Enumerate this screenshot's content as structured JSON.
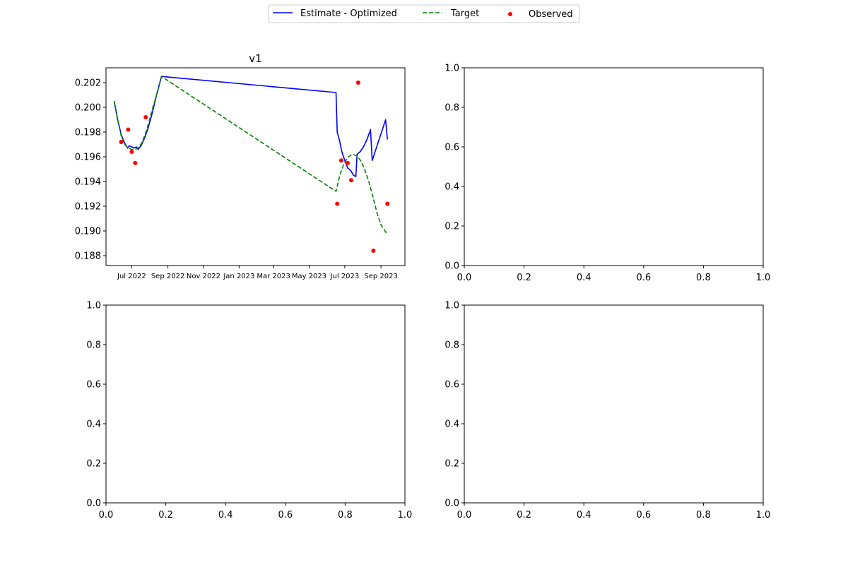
{
  "legend": {
    "items": [
      {
        "label": "Estimate - Optimized",
        "style": "solid-line",
        "color": "#0000ff"
      },
      {
        "label": "Target",
        "style": "dashed-line",
        "color": "#008000"
      },
      {
        "label": "Observed",
        "style": "dot",
        "color": "#ff0000"
      }
    ]
  },
  "chart_data": [
    {
      "type": "line",
      "title": "v1",
      "xlabel": "",
      "ylabel": "",
      "x_type": "date",
      "xlim": [
        "2022-05-18",
        "2023-10-12"
      ],
      "ylim": [
        0.1872,
        0.2032
      ],
      "x_ticks": [
        "2022-07-01",
        "2022-09-01",
        "2022-11-01",
        "2023-01-01",
        "2023-03-01",
        "2023-05-01",
        "2023-07-01",
        "2023-09-01"
      ],
      "x_tick_labels": [
        "Jul 2022",
        "Sep 2022",
        "Nov 2022",
        "Jan 2023",
        "Mar 2023",
        "May 2023",
        "Jul 2023",
        "Sep 2023"
      ],
      "y_ticks": [
        0.188,
        0.19,
        0.192,
        0.194,
        0.196,
        0.198,
        0.2,
        0.202
      ],
      "y_tick_labels": [
        "0.188",
        "0.190",
        "0.192",
        "0.194",
        "0.196",
        "0.198",
        "0.200",
        "0.202"
      ],
      "grid": false,
      "series": [
        {
          "name": "Estimate - Optimized",
          "kind": "line",
          "color": "#0000ff",
          "dash": "solid",
          "points": [
            [
              "2022-06-01",
              0.2005
            ],
            [
              "2022-06-07",
              0.199
            ],
            [
              "2022-06-13",
              0.1978
            ],
            [
              "2022-06-19",
              0.1971
            ],
            [
              "2022-06-24",
              0.1967
            ],
            [
              "2022-06-27",
              0.1969
            ],
            [
              "2022-07-01",
              0.1968
            ],
            [
              "2022-07-05",
              0.1967
            ],
            [
              "2022-07-09",
              0.1968
            ],
            [
              "2022-07-12",
              0.1966
            ],
            [
              "2022-07-17",
              0.1969
            ],
            [
              "2022-07-23",
              0.1975
            ],
            [
              "2022-07-29",
              0.1983
            ],
            [
              "2022-08-05",
              0.1995
            ],
            [
              "2022-08-12",
              0.2009
            ],
            [
              "2022-08-21",
              0.2025
            ],
            [
              "2023-06-16",
              0.2012
            ],
            [
              "2023-06-18",
              0.198
            ],
            [
              "2023-06-22",
              0.1973
            ],
            [
              "2023-06-26",
              0.1964
            ],
            [
              "2023-07-01",
              0.1957
            ],
            [
              "2023-07-06",
              0.1951
            ],
            [
              "2023-07-11",
              0.1949
            ],
            [
              "2023-07-16",
              0.1945
            ],
            [
              "2023-07-20",
              0.1944
            ],
            [
              "2023-07-22",
              0.1962
            ],
            [
              "2023-07-27",
              0.1964
            ],
            [
              "2023-08-02",
              0.1968
            ],
            [
              "2023-08-08",
              0.1974
            ],
            [
              "2023-08-14",
              0.1982
            ],
            [
              "2023-08-17",
              0.1957
            ],
            [
              "2023-09-09",
              0.199
            ],
            [
              "2023-09-12",
              0.1974
            ]
          ]
        },
        {
          "name": "Target",
          "kind": "line",
          "color": "#008000",
          "dash": "dashed",
          "points": [
            [
              "2022-06-01",
              0.2005
            ],
            [
              "2022-06-07",
              0.199
            ],
            [
              "2022-06-13",
              0.1977
            ],
            [
              "2022-06-19",
              0.197
            ],
            [
              "2022-06-25",
              0.1967
            ],
            [
              "2022-07-01",
              0.1966
            ],
            [
              "2022-07-07",
              0.1966
            ],
            [
              "2022-07-12",
              0.1967
            ],
            [
              "2022-07-18",
              0.1971
            ],
            [
              "2022-07-24",
              0.1978
            ],
            [
              "2022-07-30",
              0.1987
            ],
            [
              "2022-08-05",
              0.1998
            ],
            [
              "2022-08-12",
              0.2009
            ],
            [
              "2022-08-21",
              0.2025
            ],
            [
              "2023-06-16",
              0.1932
            ],
            [
              "2023-06-23",
              0.1946
            ],
            [
              "2023-06-30",
              0.1955
            ],
            [
              "2023-07-07",
              0.196
            ],
            [
              "2023-07-14",
              0.1962
            ],
            [
              "2023-07-21",
              0.1961
            ],
            [
              "2023-07-28",
              0.1957
            ],
            [
              "2023-08-04",
              0.195
            ],
            [
              "2023-08-11",
              0.194
            ],
            [
              "2023-08-18",
              0.1928
            ],
            [
              "2023-08-25",
              0.1915
            ],
            [
              "2023-09-01",
              0.1905
            ],
            [
              "2023-09-12",
              0.1897
            ]
          ]
        },
        {
          "name": "Observed",
          "kind": "scatter",
          "color": "#ff0000",
          "points": [
            [
              "2022-06-13",
              0.1972
            ],
            [
              "2022-06-25",
              0.1982
            ],
            [
              "2022-07-01",
              0.1964
            ],
            [
              "2022-07-07",
              0.1955
            ],
            [
              "2022-07-25",
              0.1992
            ],
            [
              "2023-06-18",
              0.1922
            ],
            [
              "2023-06-25",
              0.1957
            ],
            [
              "2023-07-06",
              0.1955
            ],
            [
              "2023-07-12",
              0.1941
            ],
            [
              "2023-07-24",
              0.202
            ],
            [
              "2023-08-19",
              0.1884
            ],
            [
              "2023-09-12",
              0.1922
            ]
          ]
        }
      ]
    },
    {
      "type": "empty",
      "xlim": [
        0,
        1
      ],
      "ylim": [
        0,
        1
      ],
      "x_ticks": [
        0.0,
        0.2,
        0.4,
        0.6,
        0.8,
        1.0
      ],
      "x_tick_labels": [
        "0.0",
        "0.2",
        "0.4",
        "0.6",
        "0.8",
        "1.0"
      ],
      "y_ticks": [
        0.0,
        0.2,
        0.4,
        0.6,
        0.8,
        1.0
      ],
      "y_tick_labels": [
        "0.0",
        "0.2",
        "0.4",
        "0.6",
        "0.8",
        "1.0"
      ],
      "series": []
    },
    {
      "type": "empty",
      "xlim": [
        0,
        1
      ],
      "ylim": [
        0,
        1
      ],
      "x_ticks": [
        0.0,
        0.2,
        0.4,
        0.6,
        0.8,
        1.0
      ],
      "x_tick_labels": [
        "0.0",
        "0.2",
        "0.4",
        "0.6",
        "0.8",
        "1.0"
      ],
      "y_ticks": [
        0.0,
        0.2,
        0.4,
        0.6,
        0.8,
        1.0
      ],
      "y_tick_labels": [
        "0.0",
        "0.2",
        "0.4",
        "0.6",
        "0.8",
        "1.0"
      ],
      "series": []
    },
    {
      "type": "empty",
      "xlim": [
        0,
        1
      ],
      "ylim": [
        0,
        1
      ],
      "x_ticks": [
        0.0,
        0.2,
        0.4,
        0.6,
        0.8,
        1.0
      ],
      "x_tick_labels": [
        "0.0",
        "0.2",
        "0.4",
        "0.6",
        "0.8",
        "1.0"
      ],
      "y_ticks": [
        0.0,
        0.2,
        0.4,
        0.6,
        0.8,
        1.0
      ],
      "y_tick_labels": [
        "0.0",
        "0.2",
        "0.4",
        "0.6",
        "0.8",
        "1.0"
      ],
      "series": []
    }
  ]
}
